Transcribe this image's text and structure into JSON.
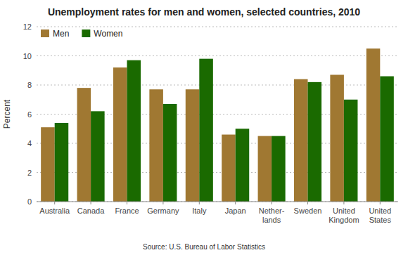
{
  "chart_data": {
    "type": "bar",
    "title": "Unemployment rates for men and women, selected countries, 2010",
    "ylabel": "Percent",
    "annotations": [
      "Source: U.S. Bureau of Labor Statistics"
    ],
    "categories": [
      "Australia",
      "Canada",
      "France",
      "Germany",
      "Italy",
      "Japan",
      "Nether-\nlands",
      "Sweden",
      "United\nKingdom",
      "United\nStates"
    ],
    "series": [
      {
        "name": "Men",
        "color": "#a07832",
        "values": [
          5.1,
          7.8,
          9.2,
          7.7,
          7.7,
          4.6,
          4.5,
          8.4,
          8.7,
          10.5
        ]
      },
      {
        "name": "Women",
        "color": "#1a6a00",
        "values": [
          5.4,
          6.2,
          9.7,
          6.7,
          9.8,
          5.0,
          4.5,
          8.2,
          7.0,
          8.6
        ]
      }
    ],
    "ylim": [
      0,
      12
    ],
    "yticks": [
      0,
      2,
      4,
      6,
      8,
      10,
      12
    ],
    "grid": true,
    "legend": "upper left"
  }
}
